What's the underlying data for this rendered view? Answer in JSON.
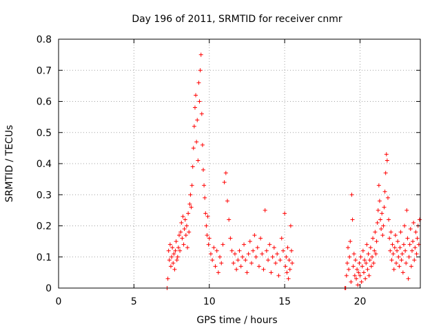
{
  "chart_data": {
    "type": "scatter",
    "title": "Day 196 of 2011, SRMTID for receiver cnmr",
    "xlabel": "GPS time / hours",
    "ylabel": "SRMTID / TECUs",
    "xlim": [
      0,
      24
    ],
    "ylim": [
      0,
      0.8
    ],
    "xticks": [
      0,
      5,
      10,
      15,
      20
    ],
    "xtick_labels": [
      "0",
      "5",
      "10",
      "15",
      "20"
    ],
    "yticks": [
      0,
      0.1,
      0.2,
      0.3,
      0.4,
      0.5,
      0.6,
      0.7,
      0.8
    ],
    "ytick_labels": [
      "0",
      "0.1",
      "0.2",
      "0.3",
      "0.4",
      "0.5",
      "0.6",
      "0.7",
      "0.8"
    ],
    "grid": true,
    "marker": "+",
    "color": "#ff0000",
    "series": [
      {
        "name": "SRMTID",
        "points": [
          [
            7.2,
            0.0
          ],
          [
            7.25,
            0.03
          ],
          [
            7.3,
            0.12
          ],
          [
            7.35,
            0.09
          ],
          [
            7.4,
            0.14
          ],
          [
            7.45,
            0.07
          ],
          [
            7.5,
            0.1
          ],
          [
            7.55,
            0.13
          ],
          [
            7.6,
            0.08
          ],
          [
            7.65,
            0.11
          ],
          [
            7.7,
            0.06
          ],
          [
            7.75,
            0.12
          ],
          [
            7.8,
            0.15
          ],
          [
            7.85,
            0.09
          ],
          [
            7.9,
            0.1
          ],
          [
            7.95,
            0.13
          ],
          [
            8.0,
            0.17
          ],
          [
            8.05,
            0.12
          ],
          [
            8.1,
            0.18
          ],
          [
            8.15,
            0.21
          ],
          [
            8.2,
            0.16
          ],
          [
            8.25,
            0.23
          ],
          [
            8.3,
            0.14
          ],
          [
            8.35,
            0.19
          ],
          [
            8.4,
            0.22
          ],
          [
            8.45,
            0.17
          ],
          [
            8.5,
            0.2
          ],
          [
            8.55,
            0.13
          ],
          [
            8.6,
            0.24
          ],
          [
            8.65,
            0.18
          ],
          [
            8.7,
            0.27
          ],
          [
            8.75,
            0.3
          ],
          [
            8.8,
            0.26
          ],
          [
            8.85,
            0.33
          ],
          [
            8.9,
            0.39
          ],
          [
            8.95,
            0.45
          ],
          [
            9.0,
            0.52
          ],
          [
            9.05,
            0.58
          ],
          [
            9.1,
            0.62
          ],
          [
            9.15,
            0.47
          ],
          [
            9.2,
            0.54
          ],
          [
            9.25,
            0.41
          ],
          [
            9.3,
            0.66
          ],
          [
            9.35,
            0.6
          ],
          [
            9.4,
            0.7
          ],
          [
            9.45,
            0.75
          ],
          [
            9.5,
            0.56
          ],
          [
            9.55,
            0.46
          ],
          [
            9.6,
            0.38
          ],
          [
            9.65,
            0.33
          ],
          [
            9.7,
            0.29
          ],
          [
            9.75,
            0.24
          ],
          [
            9.8,
            0.2
          ],
          [
            9.85,
            0.17
          ],
          [
            9.9,
            0.23
          ],
          [
            9.95,
            0.14
          ],
          [
            10.0,
            0.16
          ],
          [
            10.1,
            0.11
          ],
          [
            10.2,
            0.09
          ],
          [
            10.3,
            0.13
          ],
          [
            10.4,
            0.07
          ],
          [
            10.5,
            0.12
          ],
          [
            10.6,
            0.05
          ],
          [
            10.7,
            0.1
          ],
          [
            10.8,
            0.08
          ],
          [
            10.9,
            0.14
          ],
          [
            11.0,
            0.34
          ],
          [
            11.1,
            0.37
          ],
          [
            11.2,
            0.28
          ],
          [
            11.3,
            0.22
          ],
          [
            11.4,
            0.16
          ],
          [
            11.5,
            0.12
          ],
          [
            11.6,
            0.08
          ],
          [
            11.7,
            0.11
          ],
          [
            11.8,
            0.06
          ],
          [
            11.9,
            0.09
          ],
          [
            12.0,
            0.12
          ],
          [
            12.1,
            0.07
          ],
          [
            12.2,
            0.1
          ],
          [
            12.3,
            0.14
          ],
          [
            12.4,
            0.09
          ],
          [
            12.5,
            0.05
          ],
          [
            12.6,
            0.11
          ],
          [
            12.7,
            0.15
          ],
          [
            12.8,
            0.08
          ],
          [
            12.9,
            0.12
          ],
          [
            13.0,
            0.17
          ],
          [
            13.1,
            0.1
          ],
          [
            13.2,
            0.13
          ],
          [
            13.3,
            0.07
          ],
          [
            13.4,
            0.16
          ],
          [
            13.5,
            0.11
          ],
          [
            13.6,
            0.06
          ],
          [
            13.7,
            0.25
          ],
          [
            13.8,
            0.12
          ],
          [
            13.9,
            0.09
          ],
          [
            14.0,
            0.14
          ],
          [
            14.1,
            0.05
          ],
          [
            14.2,
            0.1
          ],
          [
            14.3,
            0.13
          ],
          [
            14.4,
            0.08
          ],
          [
            14.5,
            0.11
          ],
          [
            14.6,
            0.04
          ],
          [
            14.7,
            0.09
          ],
          [
            14.8,
            0.16
          ],
          [
            14.9,
            0.12
          ],
          [
            15.0,
            0.24
          ],
          [
            15.05,
            0.07
          ],
          [
            15.1,
            0.1
          ],
          [
            15.15,
            0.05
          ],
          [
            15.2,
            0.13
          ],
          [
            15.25,
            0.03
          ],
          [
            15.3,
            0.09
          ],
          [
            15.35,
            0.06
          ],
          [
            15.4,
            0.2
          ],
          [
            15.45,
            0.12
          ],
          [
            15.5,
            0.08
          ],
          [
            19.0,
            0.0
          ],
          [
            19.05,
            0.0
          ],
          [
            19.1,
            0.04
          ],
          [
            19.15,
            0.08
          ],
          [
            19.2,
            0.13
          ],
          [
            19.25,
            0.06
          ],
          [
            19.3,
            0.1
          ],
          [
            19.35,
            0.15
          ],
          [
            19.4,
            0.02
          ],
          [
            19.45,
            0.3
          ],
          [
            19.5,
            0.22
          ],
          [
            19.55,
            0.07
          ],
          [
            19.6,
            0.11
          ],
          [
            19.65,
            0.04
          ],
          [
            19.7,
            0.09
          ],
          [
            19.75,
            0.03
          ],
          [
            19.8,
            0.06
          ],
          [
            19.85,
            0.01
          ],
          [
            19.9,
            0.05
          ],
          [
            19.95,
            0.08
          ],
          [
            20.0,
            0.04
          ],
          [
            20.05,
            0.1
          ],
          [
            20.1,
            0.02
          ],
          [
            20.15,
            0.07
          ],
          [
            20.2,
            0.12
          ],
          [
            20.25,
            0.05
          ],
          [
            20.3,
            0.09
          ],
          [
            20.35,
            0.03
          ],
          [
            20.4,
            0.08
          ],
          [
            20.45,
            0.14
          ],
          [
            20.5,
            0.06
          ],
          [
            20.55,
            0.11
          ],
          [
            20.6,
            0.04
          ],
          [
            20.65,
            0.09
          ],
          [
            20.7,
            0.13
          ],
          [
            20.75,
            0.07
          ],
          [
            20.8,
            0.1
          ],
          [
            20.85,
            0.16
          ],
          [
            20.9,
            0.08
          ],
          [
            20.95,
            0.12
          ],
          [
            21.0,
            0.18
          ],
          [
            21.05,
            0.11
          ],
          [
            21.1,
            0.15
          ],
          [
            21.15,
            0.21
          ],
          [
            21.2,
            0.25
          ],
          [
            21.25,
            0.33
          ],
          [
            21.3,
            0.28
          ],
          [
            21.35,
            0.22
          ],
          [
            21.4,
            0.19
          ],
          [
            21.45,
            0.24
          ],
          [
            21.5,
            0.17
          ],
          [
            21.55,
            0.2
          ],
          [
            21.6,
            0.26
          ],
          [
            21.65,
            0.31
          ],
          [
            21.7,
            0.37
          ],
          [
            21.75,
            0.43
          ],
          [
            21.8,
            0.41
          ],
          [
            21.85,
            0.29
          ],
          [
            21.9,
            0.22
          ],
          [
            21.95,
            0.16
          ],
          [
            22.0,
            0.12
          ],
          [
            22.05,
            0.18
          ],
          [
            22.1,
            0.09
          ],
          [
            22.15,
            0.14
          ],
          [
            22.2,
            0.11
          ],
          [
            22.25,
            0.06
          ],
          [
            22.3,
            0.13
          ],
          [
            22.35,
            0.17
          ],
          [
            22.4,
            0.08
          ],
          [
            22.45,
            0.12
          ],
          [
            22.5,
            0.15
          ],
          [
            22.55,
            0.1
          ],
          [
            22.6,
            0.07
          ],
          [
            22.65,
            0.13
          ],
          [
            22.7,
            0.18
          ],
          [
            22.75,
            0.09
          ],
          [
            22.8,
            0.11
          ],
          [
            22.85,
            0.05
          ],
          [
            22.9,
            0.14
          ],
          [
            22.95,
            0.2
          ],
          [
            23.0,
            0.12
          ],
          [
            23.05,
            0.08
          ],
          [
            23.1,
            0.25
          ],
          [
            23.15,
            0.16
          ],
          [
            23.2,
            0.03
          ],
          [
            23.25,
            0.1
          ],
          [
            23.3,
            0.14
          ],
          [
            23.35,
            0.19
          ],
          [
            23.4,
            0.07
          ],
          [
            23.45,
            0.12
          ],
          [
            23.5,
            0.15
          ],
          [
            23.55,
            0.21
          ],
          [
            23.6,
            0.09
          ],
          [
            23.65,
            0.13
          ],
          [
            23.7,
            0.18
          ],
          [
            23.75,
            0.11
          ],
          [
            23.8,
            0.16
          ],
          [
            23.85,
            0.2
          ],
          [
            23.9,
            0.14
          ],
          [
            23.95,
            0.22
          ]
        ]
      }
    ]
  }
}
